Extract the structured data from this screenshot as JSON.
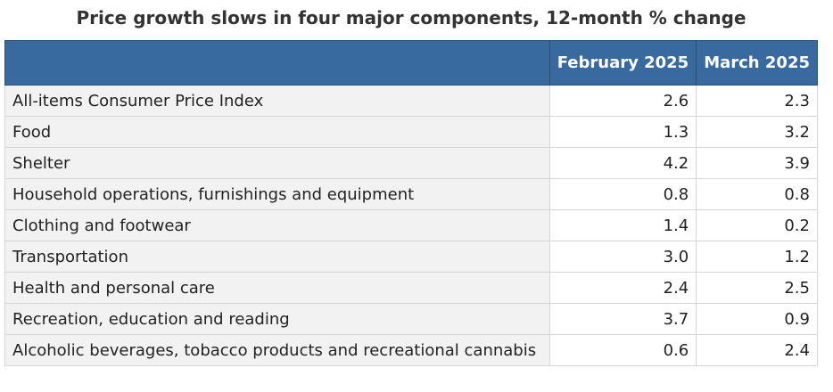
{
  "title": "Price growth slows in four major components, 12-month % change",
  "table": {
    "header": [
      "February 2025",
      "March 2025"
    ],
    "rows": [
      [
        "All-items Consumer Price Index",
        "2.6",
        "2.3"
      ],
      [
        "Food",
        "1.3",
        "3.2"
      ],
      [
        "Shelter",
        "4.2",
        "3.9"
      ],
      [
        "Household operations, furnishings and equipment",
        "0.8",
        "0.8"
      ],
      [
        "Clothing and footwear",
        "1.4",
        "0.2"
      ],
      [
        "Transportation",
        "3.0",
        "1.2"
      ],
      [
        "Health and personal care",
        "2.4",
        "2.5"
      ],
      [
        "Recreation, education and reading",
        "3.7",
        "0.9"
      ],
      [
        "Alcoholic beverages, tobacco products and recreational cannabis",
        "0.6",
        "2.4"
      ]
    ]
  }
}
